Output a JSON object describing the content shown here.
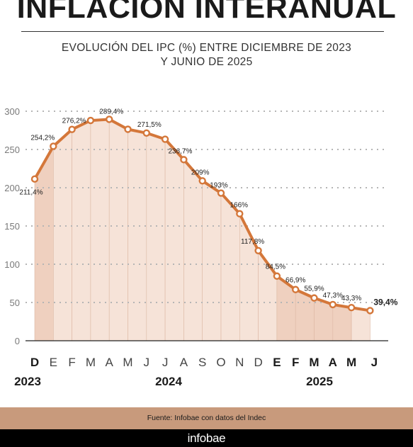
{
  "header": {
    "title": "INFLACIÓN INTERANUAL",
    "subtitle_line1": "EVOLUCIÓN DEL IPC (%) ENTRE DICIEMBRE DE 2023",
    "subtitle_line2": "Y JUNIO DE 2025"
  },
  "chart_data": {
    "type": "area",
    "title": "INFLACIÓN INTERANUAL",
    "subtitle": "EVOLUCIÓN DEL IPC (%) ENTRE DICIEMBRE DE 2023 Y JUNIO DE 2025",
    "xlabel": "",
    "ylabel": "",
    "ylim": [
      0,
      300
    ],
    "yticks": [
      "0",
      "50",
      "100",
      "150",
      "200",
      "250",
      "300"
    ],
    "grid": true,
    "categories": [
      "D",
      "E",
      "F",
      "M",
      "A",
      "M",
      "J",
      "J",
      "A",
      "S",
      "O",
      "N",
      "D",
      "E",
      "F",
      "M",
      "A",
      "M",
      "J"
    ],
    "bold_categories": [
      0,
      13,
      14,
      15,
      16,
      17,
      18
    ],
    "years": [
      "2023",
      "2024",
      "2025"
    ],
    "values": [
      211.4,
      254.2,
      276.2,
      287.9,
      289.4,
      276.4,
      271.5,
      263.4,
      236.7,
      209,
      193,
      166,
      117.8,
      84.5,
      66.9,
      55.9,
      47.3,
      43.3,
      39.4
    ],
    "labels": [
      "211,4%",
      "254,2%",
      "276,2%",
      "",
      "289,4%",
      "",
      "271,5%",
      "",
      "236,7%",
      "209%",
      "193%",
      "166%",
      "117,8%",
      "84,5%",
      "66,9%",
      "55,9%",
      "47,3%",
      "43,3%",
      "39,4%"
    ],
    "colors": {
      "line": "#d4773a",
      "fill": "#f6e3d8",
      "fill_dark": "#efd0bf",
      "grid": "#b5b5b5",
      "axis_text": "#7a7a7a",
      "band": "#c89a7c"
    }
  },
  "footer": {
    "source": "Fuente: Infobae con datos del Indec",
    "brand": "infobae"
  }
}
